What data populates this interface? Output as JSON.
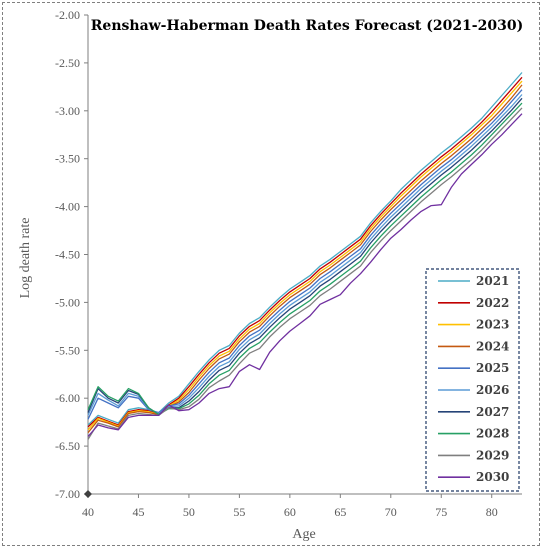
{
  "chart_data": {
    "type": "line",
    "title": "Renshaw-Haberman Death Rates Forecast (2021-2030)",
    "xlabel": "Age",
    "ylabel": "Log death rate",
    "xlim": [
      40,
      83
    ],
    "ylim": [
      -7.0,
      -2.0
    ],
    "xticks": [
      "40",
      "45",
      "50",
      "55",
      "60",
      "65",
      "70",
      "75",
      "80"
    ],
    "yticks": [
      "-2.00",
      "-2.50",
      "-3.00",
      "-3.50",
      "-4.00",
      "-4.50",
      "-5.00",
      "-5.50",
      "-6.00",
      "-6.50",
      "-7.00"
    ],
    "grid": false,
    "legend_position": "bottom-right",
    "x": [
      40,
      41,
      42,
      43,
      44,
      45,
      46,
      47,
      48,
      49,
      50,
      51,
      52,
      53,
      54,
      55,
      56,
      57,
      58,
      59,
      60,
      61,
      62,
      63,
      64,
      65,
      66,
      67,
      68,
      69,
      70,
      71,
      72,
      73,
      74,
      75,
      76,
      77,
      78,
      79,
      80,
      81,
      82,
      83
    ],
    "series": [
      {
        "name": "2021",
        "color": "#4bacc6",
        "values": [
          -6.28,
          -6.18,
          -6.22,
          -6.26,
          -6.12,
          -6.1,
          -6.12,
          -6.15,
          -6.05,
          -5.98,
          -5.85,
          -5.72,
          -5.6,
          -5.5,
          -5.45,
          -5.32,
          -5.22,
          -5.16,
          -5.05,
          -4.95,
          -4.86,
          -4.79,
          -4.72,
          -4.62,
          -4.55,
          -4.47,
          -4.39,
          -4.31,
          -4.17,
          -4.05,
          -3.94,
          -3.82,
          -3.72,
          -3.62,
          -3.53,
          -3.44,
          -3.36,
          -3.27,
          -3.18,
          -3.08,
          -2.96,
          -2.84,
          -2.72,
          -2.6
        ]
      },
      {
        "name": "2022",
        "color": "#c00000",
        "values": [
          -6.3,
          -6.2,
          -6.24,
          -6.28,
          -6.14,
          -6.12,
          -6.13,
          -6.16,
          -6.07,
          -6.0,
          -5.88,
          -5.75,
          -5.63,
          -5.53,
          -5.48,
          -5.35,
          -5.25,
          -5.19,
          -5.08,
          -4.98,
          -4.89,
          -4.82,
          -4.75,
          -4.65,
          -4.58,
          -4.5,
          -4.42,
          -4.34,
          -4.2,
          -4.08,
          -3.97,
          -3.86,
          -3.76,
          -3.66,
          -3.57,
          -3.48,
          -3.4,
          -3.31,
          -3.22,
          -3.12,
          -3.01,
          -2.89,
          -2.77,
          -2.65
        ]
      },
      {
        "name": "2023",
        "color": "#ffc000",
        "values": [
          -6.33,
          -6.21,
          -6.25,
          -6.29,
          -6.15,
          -6.13,
          -6.14,
          -6.17,
          -6.08,
          -6.02,
          -5.91,
          -5.78,
          -5.66,
          -5.56,
          -5.51,
          -5.38,
          -5.28,
          -5.22,
          -5.11,
          -5.01,
          -4.92,
          -4.85,
          -4.78,
          -4.68,
          -4.61,
          -4.53,
          -4.45,
          -4.37,
          -4.23,
          -4.11,
          -4.0,
          -3.89,
          -3.79,
          -3.69,
          -3.6,
          -3.51,
          -3.43,
          -3.34,
          -3.25,
          -3.15,
          -3.05,
          -2.93,
          -2.81,
          -2.69
        ]
      },
      {
        "name": "2024",
        "color": "#c55a11",
        "values": [
          -6.36,
          -6.23,
          -6.26,
          -6.3,
          -6.16,
          -6.14,
          -6.15,
          -6.17,
          -6.09,
          -6.04,
          -5.94,
          -5.81,
          -5.69,
          -5.59,
          -5.54,
          -5.41,
          -5.31,
          -5.25,
          -5.14,
          -5.04,
          -4.95,
          -4.88,
          -4.81,
          -4.71,
          -4.64,
          -4.56,
          -4.48,
          -4.4,
          -4.26,
          -4.14,
          -4.03,
          -3.93,
          -3.83,
          -3.73,
          -3.64,
          -3.55,
          -3.47,
          -3.38,
          -3.29,
          -3.19,
          -3.09,
          -2.98,
          -2.86,
          -2.73
        ]
      },
      {
        "name": "2025",
        "color": "#4472c4",
        "values": [
          -6.22,
          -6.0,
          -6.05,
          -6.1,
          -5.98,
          -6.0,
          -6.12,
          -6.15,
          -6.08,
          -6.06,
          -5.97,
          -5.85,
          -5.73,
          -5.63,
          -5.58,
          -5.45,
          -5.35,
          -5.29,
          -5.18,
          -5.08,
          -4.99,
          -4.92,
          -4.85,
          -4.75,
          -4.68,
          -4.6,
          -4.52,
          -4.44,
          -4.3,
          -4.18,
          -4.07,
          -3.97,
          -3.87,
          -3.77,
          -3.68,
          -3.59,
          -3.51,
          -3.42,
          -3.33,
          -3.23,
          -3.13,
          -3.02,
          -2.9,
          -2.78
        ]
      },
      {
        "name": "2026",
        "color": "#5b9bd5",
        "values": [
          -6.18,
          -5.95,
          -6.02,
          -6.08,
          -5.95,
          -5.98,
          -6.11,
          -6.16,
          -6.09,
          -6.08,
          -6.0,
          -5.89,
          -5.77,
          -5.67,
          -5.62,
          -5.49,
          -5.39,
          -5.33,
          -5.22,
          -5.12,
          -5.03,
          -4.96,
          -4.89,
          -4.79,
          -4.72,
          -4.64,
          -4.56,
          -4.48,
          -4.34,
          -4.22,
          -4.11,
          -4.01,
          -3.91,
          -3.81,
          -3.72,
          -3.63,
          -3.55,
          -3.46,
          -3.37,
          -3.27,
          -3.17,
          -3.06,
          -2.95,
          -2.83
        ]
      },
      {
        "name": "2027",
        "color": "#264478",
        "values": [
          -6.15,
          -5.9,
          -6.0,
          -6.05,
          -5.92,
          -5.96,
          -6.1,
          -6.17,
          -6.1,
          -6.1,
          -6.03,
          -5.93,
          -5.81,
          -5.71,
          -5.66,
          -5.53,
          -5.43,
          -5.37,
          -5.26,
          -5.16,
          -5.07,
          -5.0,
          -4.93,
          -4.83,
          -4.76,
          -4.68,
          -4.6,
          -4.52,
          -4.38,
          -4.26,
          -4.15,
          -4.05,
          -3.95,
          -3.85,
          -3.76,
          -3.67,
          -3.59,
          -3.5,
          -3.41,
          -3.31,
          -3.21,
          -3.1,
          -2.99,
          -2.87
        ]
      },
      {
        "name": "2028",
        "color": "#27a065",
        "values": [
          -6.12,
          -5.88,
          -5.98,
          -6.03,
          -5.9,
          -5.95,
          -6.1,
          -6.17,
          -6.11,
          -6.11,
          -6.06,
          -5.97,
          -5.85,
          -5.76,
          -5.71,
          -5.58,
          -5.48,
          -5.42,
          -5.31,
          -5.21,
          -5.12,
          -5.05,
          -4.98,
          -4.88,
          -4.81,
          -4.73,
          -4.65,
          -4.57,
          -4.43,
          -4.31,
          -4.2,
          -4.1,
          -4.0,
          -3.9,
          -3.81,
          -3.72,
          -3.64,
          -3.55,
          -3.46,
          -3.36,
          -3.25,
          -3.14,
          -3.03,
          -2.92
        ]
      },
      {
        "name": "2029",
        "color": "#7f7f7f",
        "values": [
          -6.43,
          -6.26,
          -6.29,
          -6.32,
          -6.18,
          -6.16,
          -6.17,
          -6.18,
          -6.1,
          -6.12,
          -6.09,
          -6.01,
          -5.89,
          -5.82,
          -5.76,
          -5.64,
          -5.53,
          -5.48,
          -5.36,
          -5.26,
          -5.17,
          -5.1,
          -5.03,
          -4.93,
          -4.86,
          -4.78,
          -4.7,
          -4.62,
          -4.48,
          -4.36,
          -4.25,
          -4.15,
          -4.05,
          -3.95,
          -3.86,
          -3.77,
          -3.69,
          -3.6,
          -3.51,
          -3.41,
          -3.3,
          -3.19,
          -3.08,
          -2.97
        ]
      },
      {
        "name": "2030",
        "color": "#7030a0",
        "values": [
          -6.4,
          -6.28,
          -6.31,
          -6.33,
          -6.2,
          -6.18,
          -6.18,
          -6.18,
          -6.07,
          -6.13,
          -6.12,
          -6.05,
          -5.95,
          -5.9,
          -5.88,
          -5.72,
          -5.65,
          -5.7,
          -5.52,
          -5.4,
          -5.3,
          -5.22,
          -5.14,
          -5.02,
          -4.97,
          -4.92,
          -4.8,
          -4.7,
          -4.58,
          -4.45,
          -4.33,
          -4.24,
          -4.14,
          -4.05,
          -3.99,
          -3.98,
          -3.8,
          -3.66,
          -3.56,
          -3.46,
          -3.35,
          -3.25,
          -3.14,
          -3.03
        ]
      }
    ]
  }
}
